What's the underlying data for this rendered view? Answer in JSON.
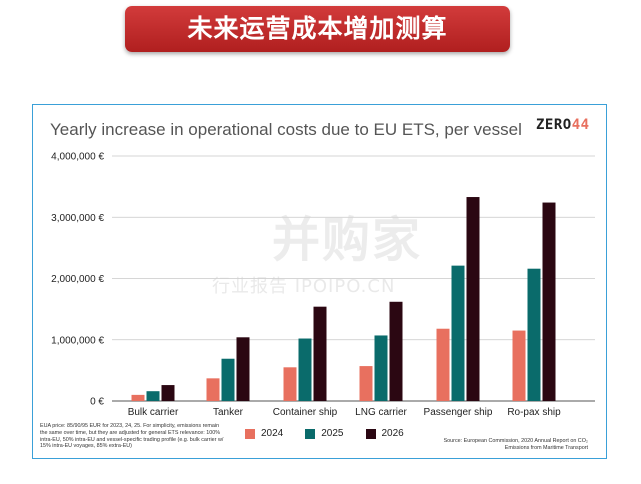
{
  "banner": {
    "title": "未来运营成本增加测算"
  },
  "logo": {
    "main": "ZERO",
    "accent": "44"
  },
  "watermark": {
    "main": "并购家",
    "sub": "行业报告 IPOIPO.CN"
  },
  "note": "EUA price: 85/90/95 EUR for 2023, 24, 25. For simplicity, emissions remain the same over time, but they are adjusted for general ETS relevance: 100% intra-EU, 50% intra-EU and vessel-specific trading profile (e.g. bulk carrier w/ 15% intra-EU voyages, 85% extra-EU)",
  "source": "Source: European Commission, 2020 Annual Report on CO₂ Emissions from Maritime Transport",
  "colors": {
    "2024": "#e8705f",
    "2025": "#0a6b6b",
    "2026": "#2b0712",
    "frame": "#3aa0d8",
    "banner": "#c0282a"
  },
  "chart_data": {
    "type": "bar",
    "title": "Yearly increase in operational costs due to EU ETS, per vessel",
    "categories": [
      "Bulk carrier",
      "Tanker",
      "Container ship",
      "LNG carrier",
      "Passenger ship",
      "Ro-pax ship"
    ],
    "series": [
      {
        "name": "2024",
        "values": [
          100000,
          370000,
          550000,
          570000,
          1180000,
          1150000
        ]
      },
      {
        "name": "2025",
        "values": [
          160000,
          690000,
          1020000,
          1070000,
          2210000,
          2160000
        ]
      },
      {
        "name": "2026",
        "values": [
          260000,
          1040000,
          1540000,
          1620000,
          3330000,
          3240000
        ]
      }
    ],
    "ylim": [
      0,
      4000000
    ],
    "yticks": [
      0,
      1000000,
      2000000,
      3000000,
      4000000
    ],
    "ytick_labels": [
      "0 €",
      "1,000,000 €",
      "2,000,000 €",
      "3,000,000 €",
      "4,000,000 €"
    ],
    "legend_position": "bottom",
    "grid": true
  }
}
